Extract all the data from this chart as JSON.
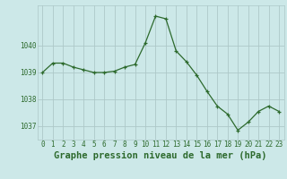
{
  "x": [
    0,
    1,
    2,
    3,
    4,
    5,
    6,
    7,
    8,
    9,
    10,
    11,
    12,
    13,
    14,
    15,
    16,
    17,
    18,
    19,
    20,
    21,
    22,
    23
  ],
  "y": [
    1039.0,
    1039.35,
    1039.35,
    1039.2,
    1039.1,
    1039.0,
    1039.0,
    1039.05,
    1039.2,
    1039.3,
    1040.1,
    1041.1,
    1041.0,
    1039.8,
    1039.4,
    1038.9,
    1038.3,
    1037.75,
    1037.45,
    1036.85,
    1037.15,
    1037.55,
    1037.75,
    1037.55
  ],
  "line_color": "#2d6a2d",
  "marker": "+",
  "bg_color": "#cce8e8",
  "grid_color": "#adc8c8",
  "xlabel": "Graphe pression niveau de la mer (hPa)",
  "xlabel_fontsize": 7.5,
  "ylabel_ticks": [
    1037,
    1038,
    1039,
    1040
  ],
  "ylim": [
    1036.5,
    1041.5
  ],
  "xlim": [
    -0.5,
    23.5
  ],
  "tick_color": "#2d6a2d",
  "tick_fontsize": 5.5,
  "label_color": "#2d6a2d"
}
